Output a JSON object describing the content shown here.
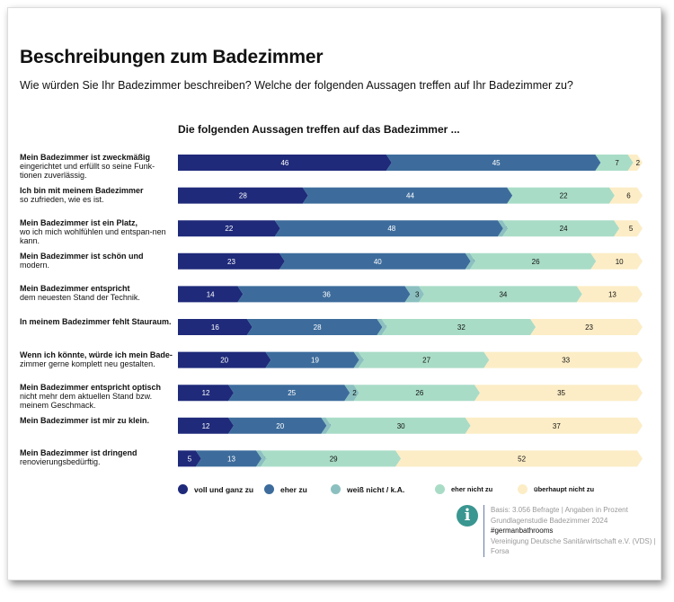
{
  "title": "Beschreibungen zum Badezimmer",
  "subtitle": "Wie würden Sie Ihr Badezimmer beschreiben? Welche der folgenden Aussagen treffen auf Ihr Badezimmer zu?",
  "chart_data": {
    "type": "bar",
    "orientation": "horizontal-stacked-100",
    "title": "Die folgenden Aussagen treffen auf das Badezimmer ...",
    "unit": "Prozent",
    "legend_position": "bottom",
    "categories": [
      {
        "bold": "Mein Badezimmer ist zweckmäßig",
        "rest": "eingerichtet und erfüllt so seine Funk-tionen zuverlässig."
      },
      {
        "bold": "Ich bin mit meinem Badezimmer",
        "rest": "so zufrieden, wie es ist."
      },
      {
        "bold": "Mein Badezimmer ist ein Platz,",
        "rest": "wo ich mich  wohlfühlen und entspan-nen kann."
      },
      {
        "bold": "Mein Badezimmer ist schön und",
        "rest": "modern."
      },
      {
        "bold": "Mein Badezimmer entspricht",
        "rest": "dem neuesten Stand der Technik."
      },
      {
        "bold": "In meinem Badezimmer fehlt Stauraum.",
        "rest": ""
      },
      {
        "bold": "Wenn ich könnte, würde ich mein Bade-",
        "rest": "zimmer  gerne komplett neu gestalten."
      },
      {
        "bold": "Mein Badezimmer entspricht optisch",
        "rest": "nicht mehr dem aktuellen Stand bzw. meinem Geschmack."
      },
      {
        "bold": "Mein Badezimmer ist mir zu klein.",
        "rest": ""
      },
      {
        "bold": "Mein Badezimmer ist dringend",
        "rest": "renovierungsbedürftig."
      }
    ],
    "series": [
      {
        "name": "voll und ganz zu",
        "color": "#1f2a7a",
        "values": [
          46,
          28,
          22,
          23,
          14,
          16,
          20,
          12,
          12,
          5
        ]
      },
      {
        "name": "eher zu",
        "color": "#3d6c9c",
        "values": [
          45,
          44,
          48,
          40,
          36,
          28,
          19,
          25,
          20,
          13
        ]
      },
      {
        "name": "weiß nicht / k.A.",
        "color": "#8cc0c0",
        "values": [
          0,
          0,
          1,
          1,
          3,
          1,
          1,
          2,
          1,
          1
        ]
      },
      {
        "name": "eher nicht zu",
        "color": "#a9dcc7",
        "values": [
          7,
          22,
          24,
          26,
          34,
          32,
          27,
          26,
          30,
          29
        ]
      },
      {
        "name": "überhaupt nicht zu",
        "color": "#fcedc6",
        "values": [
          2,
          6,
          5,
          10,
          13,
          23,
          33,
          35,
          37,
          52
        ]
      }
    ]
  },
  "source": {
    "info_icon": "info-icon",
    "line1": "Basis: 3.056 Befragte | Angaben in Prozent",
    "line2": "Grundlagenstudie Badezimmer 2024",
    "hashtag": "#germanbathrooms",
    "line3": "Vereinigung Deutsche Sanitärwirtschaft e.V. (VDS) |",
    "line4": "Forsa"
  }
}
